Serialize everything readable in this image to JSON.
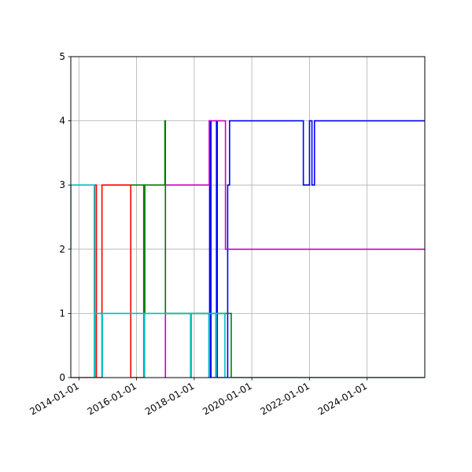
{
  "chart_data": {
    "type": "line",
    "title": "",
    "xlabel": "",
    "ylabel": "",
    "grid": true,
    "xlim": [
      "2013-09-20",
      "2026-01-01"
    ],
    "ylim": [
      0,
      5
    ],
    "x_ticks": [
      "2014-01-01",
      "2016-01-01",
      "2018-01-01",
      "2020-01-01",
      "2022-01-01",
      "2024-01-01"
    ],
    "y_ticks": [
      0,
      1,
      2,
      3,
      4,
      5
    ],
    "series": [
      {
        "color": "#0000ff",
        "points": [
          [
            "2018-07-15",
            0
          ],
          [
            "2018-07-15",
            4
          ],
          [
            "2018-07-20",
            4
          ],
          [
            "2018-07-20",
            0
          ],
          [
            "2018-07-25",
            0
          ],
          [
            "2018-07-25",
            4
          ],
          [
            "2018-08-01",
            4
          ],
          [
            "2018-08-01",
            0
          ],
          [
            "2018-10-10",
            0
          ],
          [
            "2018-10-10",
            4
          ],
          [
            "2018-10-20",
            4
          ],
          [
            "2018-10-20",
            0
          ],
          [
            "2019-03-01",
            0
          ],
          [
            "2019-03-01",
            3
          ],
          [
            "2019-03-25",
            3
          ],
          [
            "2019-03-25",
            4
          ],
          [
            "2021-10-15",
            4
          ],
          [
            "2021-10-15",
            3
          ],
          [
            "2022-01-01",
            3
          ],
          [
            "2022-01-01",
            4
          ],
          [
            "2022-02-01",
            4
          ],
          [
            "2022-02-01",
            3
          ],
          [
            "2022-03-05",
            3
          ],
          [
            "2022-03-05",
            4
          ],
          [
            "2026-01-01",
            4
          ]
        ]
      },
      {
        "color": "#cc00cc",
        "points": [
          [
            "2017-01-01",
            0
          ],
          [
            "2017-01-01",
            3
          ],
          [
            "2018-07-10",
            3
          ],
          [
            "2018-07-10",
            4
          ],
          [
            "2019-02-01",
            4
          ],
          [
            "2019-02-01",
            2
          ],
          [
            "2026-01-01",
            2
          ]
        ]
      },
      {
        "color": "#ff0000",
        "points": [
          [
            "2013-09-20",
            0
          ],
          [
            "2014-07-20",
            0
          ],
          [
            "2014-07-20",
            3
          ],
          [
            "2014-08-10",
            3
          ],
          [
            "2014-08-10",
            0
          ],
          [
            "2014-10-20",
            0
          ],
          [
            "2014-10-20",
            3
          ],
          [
            "2015-10-20",
            3
          ],
          [
            "2015-10-20",
            0
          ],
          [
            "2016-04-01",
            0
          ],
          [
            "2016-04-01",
            3
          ],
          [
            "2016-04-10",
            3
          ],
          [
            "2016-04-10",
            0
          ]
        ]
      },
      {
        "color": "#008000",
        "points": [
          [
            "2015-10-20",
            3
          ],
          [
            "2016-04-10",
            3
          ],
          [
            "2016-04-10",
            1
          ],
          [
            "2016-04-15",
            1
          ],
          [
            "2016-04-15",
            3
          ],
          [
            "2016-12-25",
            3
          ],
          [
            "2016-12-25",
            4
          ],
          [
            "2017-01-01",
            4
          ],
          [
            "2017-01-01",
            1
          ],
          [
            "2019-04-15",
            1
          ],
          [
            "2019-04-15",
            0
          ],
          [
            "2026-01-01",
            0
          ]
        ]
      },
      {
        "color": "#00bfbf",
        "points": [
          [
            "2013-09-20",
            2
          ],
          [
            "2013-09-20",
            3
          ],
          [
            "2014-07-15",
            3
          ],
          [
            "2014-07-15",
            0
          ],
          [
            "2014-07-25",
            0
          ],
          [
            "2014-07-25",
            1
          ],
          [
            "2014-10-20",
            1
          ],
          [
            "2014-10-20",
            0
          ],
          [
            "2014-10-25",
            0
          ],
          [
            "2014-10-25",
            1
          ],
          [
            "2016-04-05",
            1
          ],
          [
            "2016-04-05",
            0
          ],
          [
            "2016-04-12",
            0
          ],
          [
            "2016-04-12",
            1
          ],
          [
            "2017-11-15",
            1
          ],
          [
            "2017-11-15",
            0
          ],
          [
            "2017-11-25",
            0
          ],
          [
            "2017-11-25",
            1
          ],
          [
            "2018-07-05",
            1
          ],
          [
            "2018-07-05",
            0
          ],
          [
            "2018-07-12",
            0
          ],
          [
            "2018-07-12",
            1
          ],
          [
            "2018-10-01",
            1
          ],
          [
            "2018-10-01",
            0
          ],
          [
            "2018-10-08",
            0
          ],
          [
            "2018-10-08",
            1
          ],
          [
            "2019-01-25",
            1
          ],
          [
            "2019-01-25",
            0
          ],
          [
            "2026-01-01",
            0
          ]
        ]
      }
    ]
  }
}
